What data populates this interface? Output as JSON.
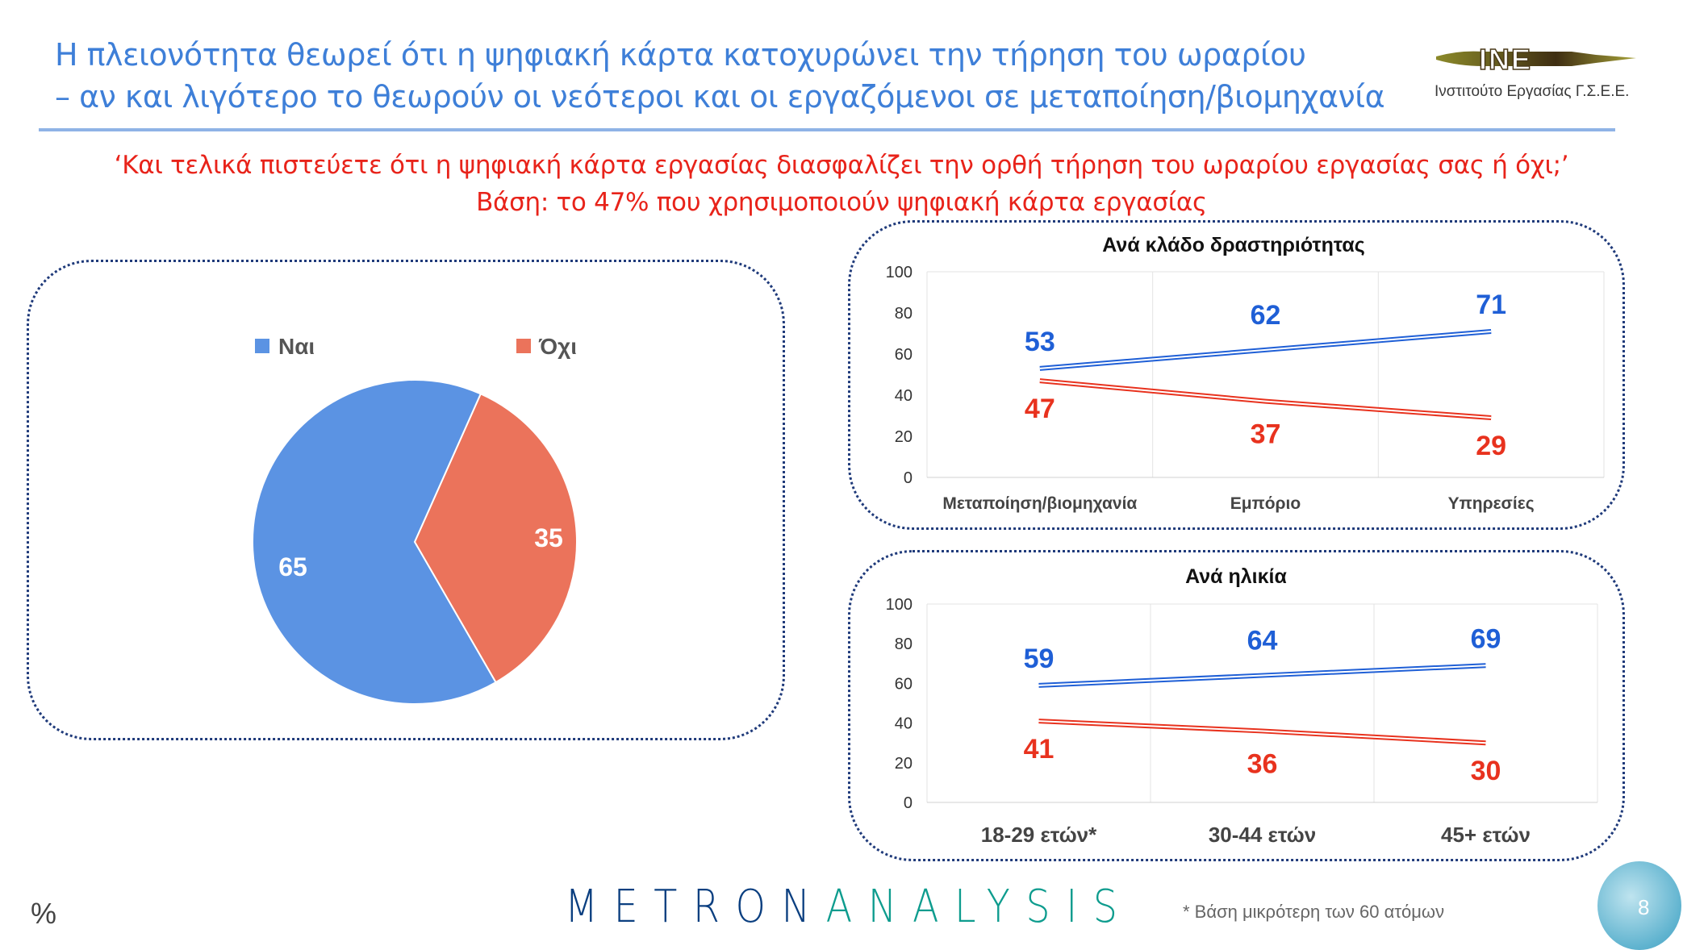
{
  "header": {
    "title_line1": "Η πλειονότητα θεωρεί ότι η ψηφιακή κάρτα κατοχυρώνει την τήρηση του ωραρίου",
    "title_line2": "– αν και λιγότερο το θεωρούν οι νεότεροι και οι εργαζόμενοι σε μεταποίηση/βιομηχανία",
    "logo_text": "INE",
    "logo_subtitle": "Ινστιτούτο Εργασίας Γ.Σ.Ε.Ε."
  },
  "question": {
    "line1": "‘Και τελικά πιστεύετε ότι η ψηφιακή κάρτα εργασίας διασφαλίζει την ορθή τήρηση του ωραρίου εργασίας σας ή όχι;’",
    "line2": "Βάση: το 47% που χρησιμοποιούν ψηφιακή κάρτα εργασίας"
  },
  "colors": {
    "yes_pie": "#5B93E3",
    "no_pie": "#EB735B",
    "yes_line": "#1F5FD6",
    "no_line": "#E8321E"
  },
  "chart_data": [
    {
      "type": "pie",
      "title": "",
      "legend": [
        "Ναι",
        "Όχι"
      ],
      "slices": [
        {
          "label": "Ναι",
          "value": 65
        },
        {
          "label": "Όχι",
          "value": 35
        }
      ]
    },
    {
      "type": "line",
      "title": "Ανά κλάδο δραστηριότητας",
      "categories": [
        "Μεταποίηση/βιομηχανία",
        "Εμπόριο",
        "Υπηρεσίες"
      ],
      "yticks": [
        "0",
        "20",
        "40",
        "60",
        "80",
        "100"
      ],
      "ylim": [
        0,
        100
      ],
      "series": [
        {
          "name": "Ναι",
          "values": [
            53,
            62,
            71
          ]
        },
        {
          "name": "Όχι",
          "values": [
            47,
            37,
            29
          ]
        }
      ]
    },
    {
      "type": "line",
      "title": "Ανά ηλικία",
      "categories": [
        "18-29 ετών*",
        "30-44 ετών",
        "45+ ετών"
      ],
      "yticks": [
        "0",
        "20",
        "40",
        "60",
        "80",
        "100"
      ],
      "ylim": [
        0,
        100
      ],
      "series": [
        {
          "name": "Ναι",
          "values": [
            59,
            64,
            69
          ]
        },
        {
          "name": "Όχι",
          "values": [
            41,
            36,
            30
          ]
        }
      ]
    }
  ],
  "footer": {
    "percent_sign": "%",
    "brand_a": "METRON",
    "brand_b": "ANALYSIS",
    "note": "*  Βάση μικρότερη των 60 ατόμων",
    "page": "8"
  }
}
